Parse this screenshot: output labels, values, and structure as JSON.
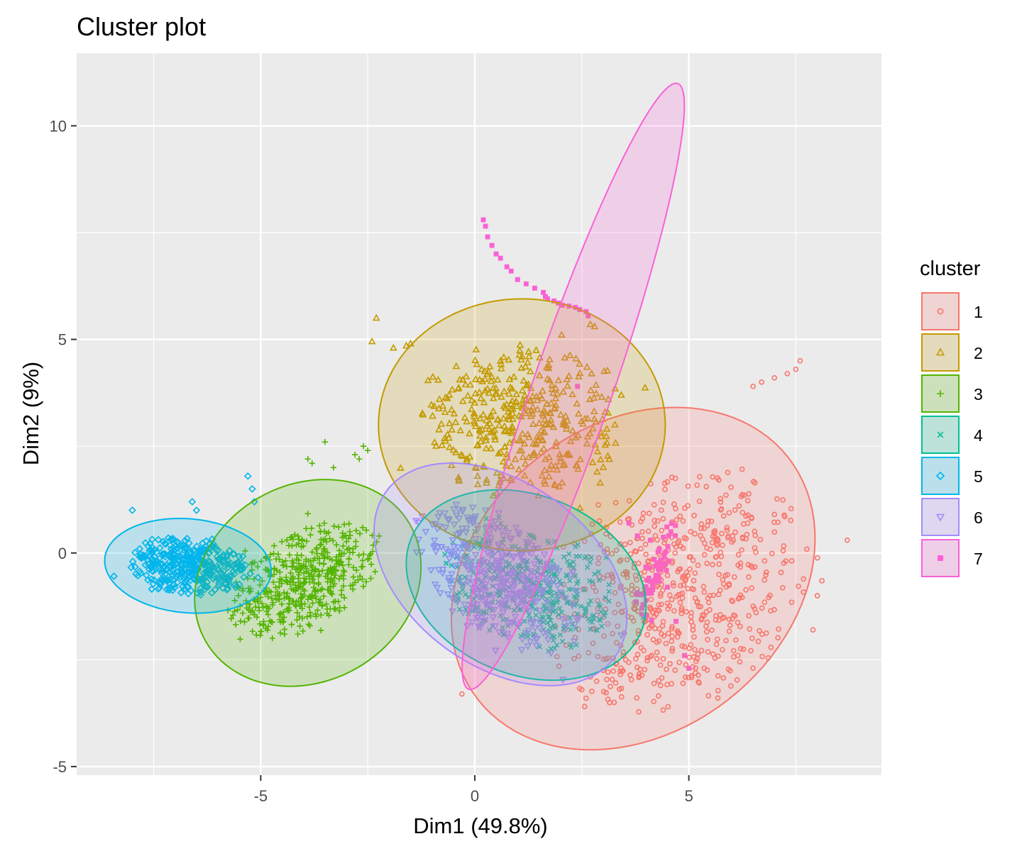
{
  "chart_data": {
    "type": "scatter",
    "title": "Cluster plot",
    "xlabel": "Dim1 (49.8%)",
    "ylabel": "Dim2 (9%)",
    "xlim": [
      -9.3,
      9.5
    ],
    "ylim": [
      -5.2,
      11.7
    ],
    "xticks": [
      -5,
      0,
      5
    ],
    "yticks": [
      -5,
      0,
      5,
      10
    ],
    "grid": true,
    "legend": {
      "title": "cluster",
      "position": "right"
    },
    "series": [
      {
        "name": "1",
        "color": "#F8766D",
        "shape": "circle",
        "ellipse": {
          "cx": 3.7,
          "cy": -0.6,
          "rx": 4.6,
          "ry": 3.6,
          "angle": 38
        },
        "spread": {
          "cx": 4.8,
          "cy": -0.9,
          "rx": 2.9,
          "ry": 2.3,
          "angle": 35
        },
        "points": [
          [
            7.5,
            4.3
          ],
          [
            7.6,
            4.5
          ],
          [
            7.3,
            4.2
          ],
          [
            7.0,
            4.1
          ],
          [
            6.5,
            3.9
          ],
          [
            6.7,
            4.0
          ],
          [
            8.7,
            0.3
          ],
          [
            -0.3,
            -3.3
          ],
          [
            2.5,
            -3.2
          ],
          [
            2.7,
            -2.9
          ],
          [
            2.6,
            -3.4
          ],
          [
            3.3,
            -2.6
          ],
          [
            8.0,
            -1.0
          ],
          [
            7.9,
            -1.8
          ]
        ]
      },
      {
        "name": "2",
        "color": "#C49A00",
        "shape": "triangle",
        "ellipse": {
          "cx": 1.1,
          "cy": 3.0,
          "rx": 3.35,
          "ry": 2.95,
          "angle": 0
        },
        "spread": {
          "cx": 1.0,
          "cy": 3.1,
          "rx": 2.2,
          "ry": 1.6,
          "angle": 0
        },
        "points": [
          [
            -2.3,
            5.5
          ],
          [
            -2.4,
            4.95
          ],
          [
            -1.9,
            4.8
          ],
          [
            -1.6,
            4.85
          ],
          [
            -1.5,
            4.9
          ],
          [
            2.7,
            5.35
          ],
          [
            2.8,
            5.3
          ]
        ]
      },
      {
        "name": "3",
        "color": "#53B400",
        "shape": "plus",
        "ellipse": {
          "cx": -3.9,
          "cy": -0.7,
          "rx": 2.75,
          "ry": 2.3,
          "angle": 30
        },
        "spread": {
          "cx": -4.0,
          "cy": -0.65,
          "rx": 1.7,
          "ry": 1.0,
          "angle": 30
        },
        "points": [
          [
            -3.5,
            2.6
          ],
          [
            -3.9,
            2.2
          ],
          [
            -3.8,
            2.1
          ],
          [
            -3.3,
            2.0
          ],
          [
            -2.6,
            2.5
          ],
          [
            -2.8,
            2.3
          ],
          [
            -2.5,
            2.4
          ],
          [
            -4.5,
            -1.5
          ],
          [
            -2.7,
            2.2
          ]
        ]
      },
      {
        "name": "4",
        "color": "#00C094",
        "shape": "x",
        "ellipse": {
          "cx": 1.2,
          "cy": -0.75,
          "rx": 2.9,
          "ry": 2.1,
          "angle": -22
        },
        "spread": {
          "cx": 1.2,
          "cy": -0.8,
          "rx": 1.9,
          "ry": 1.2,
          "angle": -22
        },
        "points": []
      },
      {
        "name": "5",
        "color": "#00B6EB",
        "shape": "diamond",
        "ellipse": {
          "cx": -6.7,
          "cy": -0.3,
          "rx": 1.95,
          "ry": 1.1,
          "angle": -5
        },
        "spread": {
          "cx": -6.7,
          "cy": -0.3,
          "rx": 1.3,
          "ry": 0.6,
          "angle": -5
        },
        "points": [
          [
            -5.3,
            1.8
          ],
          [
            -5.2,
            1.5
          ],
          [
            -5.15,
            1.2
          ],
          [
            -8.0,
            1.0
          ],
          [
            -6.6,
            1.2
          ],
          [
            -6.5,
            1.0
          ]
        ]
      },
      {
        "name": "6",
        "color": "#A58AFF",
        "shape": "triangle-down",
        "ellipse": {
          "cx": 0.6,
          "cy": -0.5,
          "rx": 3.3,
          "ry": 2.15,
          "angle": -36
        },
        "spread": {
          "cx": 0.6,
          "cy": -0.6,
          "rx": 2.1,
          "ry": 1.2,
          "angle": -36
        },
        "points": []
      },
      {
        "name": "7",
        "color": "#FB61D7",
        "shape": "square",
        "ellipse": {
          "cx": 2.3,
          "cy": 3.9,
          "rx": 7.5,
          "ry": 0.93,
          "angle": 71
        },
        "spread": {
          "cx": 4.2,
          "cy": -0.5,
          "rx": 1.2,
          "ry": 0.25,
          "angle": 72
        },
        "points": [
          [
            0.2,
            7.8
          ],
          [
            0.25,
            7.65
          ],
          [
            0.3,
            7.4
          ],
          [
            0.4,
            7.2
          ],
          [
            0.5,
            7.0
          ],
          [
            0.6,
            6.9
          ],
          [
            0.75,
            6.7
          ],
          [
            0.85,
            6.6
          ],
          [
            1.0,
            6.4
          ],
          [
            1.2,
            6.3
          ],
          [
            1.4,
            6.2
          ],
          [
            1.6,
            6.1
          ],
          [
            1.65,
            6.0
          ],
          [
            1.7,
            5.95
          ],
          [
            1.85,
            5.9
          ],
          [
            1.95,
            5.85
          ],
          [
            2.05,
            5.8
          ],
          [
            2.2,
            5.78
          ],
          [
            2.35,
            5.75
          ],
          [
            2.45,
            5.7
          ],
          [
            2.6,
            5.65
          ],
          [
            2.65,
            5.55
          ],
          [
            2.4,
            3.9
          ],
          [
            3.6,
            0.7
          ],
          [
            3.8,
            0.4
          ],
          [
            4.1,
            0.3
          ],
          [
            4.5,
            -0.8
          ],
          [
            4.7,
            -1.6
          ],
          [
            4.9,
            -2.4
          ],
          [
            5.0,
            -2.7
          ]
        ]
      }
    ]
  }
}
